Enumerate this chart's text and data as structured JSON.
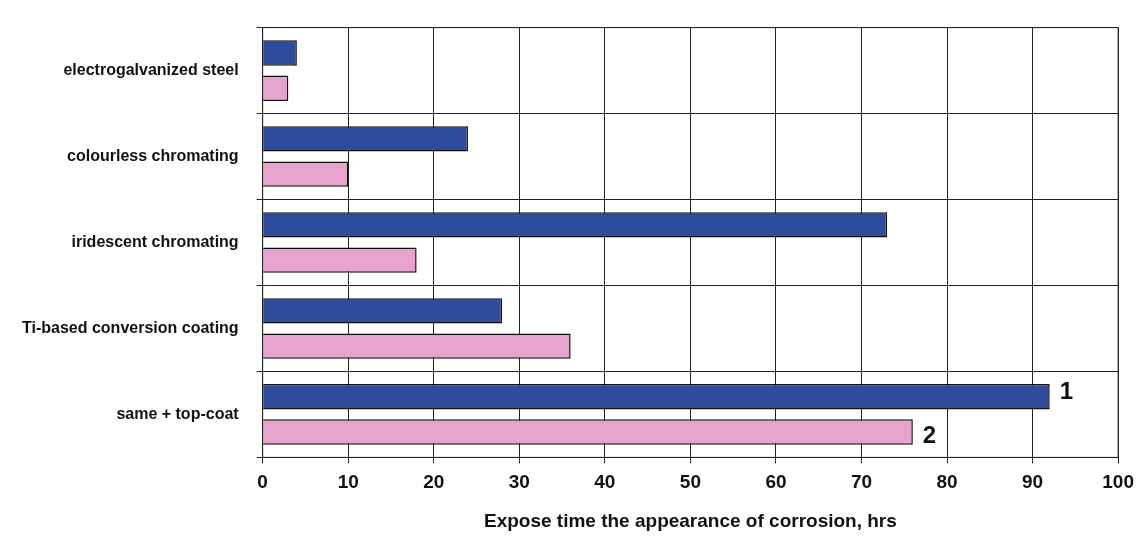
{
  "chart_data": {
    "type": "bar",
    "orientation": "horizontal",
    "xlabel": "Expose time the appearance of corrosion, hrs",
    "categories": [
      "electrogalvanized steel",
      "colourless chromating",
      "iridescent chromating",
      "Ti-based conversion coating",
      "same + top-coat"
    ],
    "series": [
      {
        "name": "1",
        "color": "#2f4c9c",
        "values": [
          4,
          24,
          73,
          28,
          92
        ]
      },
      {
        "name": "2",
        "color": "#e6a3cc",
        "values": [
          3,
          10,
          18,
          36,
          76
        ]
      }
    ],
    "xlim": [
      0,
      100
    ],
    "xticks": [
      0,
      10,
      20,
      30,
      40,
      50,
      60,
      70,
      80,
      90,
      100
    ],
    "grid": true,
    "legend": false
  }
}
